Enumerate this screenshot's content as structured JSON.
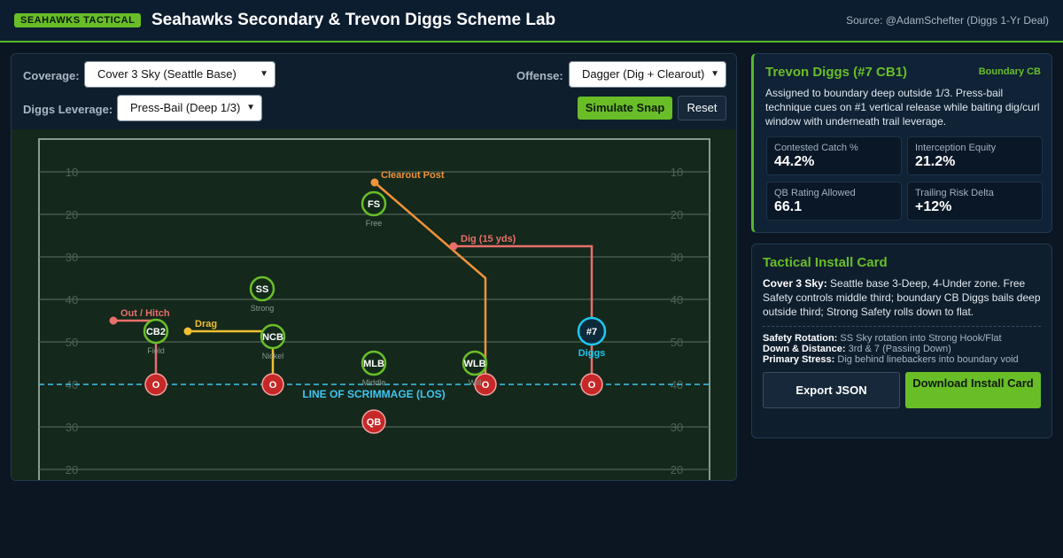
{
  "header": {
    "badge": "SEAHAWKS TACTICAL",
    "title": "Seahawks Secondary & Trevon Diggs Scheme Lab",
    "source": "Source: @AdamSchefter (Diggs 1-Yr Deal)"
  },
  "controls": {
    "coverage_label": "Coverage:",
    "coverage_value": "Cover 3 Sky (Seattle Base)",
    "offense_label": "Offense:",
    "offense_value": "Dagger (Dig + Clearout)",
    "leverage_label": "Diggs Leverage:",
    "leverage_value": "Press-Bail (Deep 1/3)",
    "simulate_label": "Simulate Snap",
    "reset_label": "Reset"
  },
  "field": {
    "yard_labels_left": [
      "10",
      "20",
      "30",
      "40",
      "50",
      "40",
      "30",
      "20"
    ],
    "yard_labels_right": [
      "10",
      "20",
      "30",
      "40",
      "50",
      "40",
      "30",
      "20"
    ],
    "los_label": "LINE OF SCRIMMAGE (LOS)",
    "defenders": [
      {
        "id": "fs",
        "label": "FS",
        "role": "Free"
      },
      {
        "id": "ss",
        "label": "SS",
        "role": "Strong"
      },
      {
        "id": "cb2",
        "label": "CB2",
        "role": "Field"
      },
      {
        "id": "ncb",
        "label": "NCB",
        "role": "Nickel"
      },
      {
        "id": "mlb",
        "label": "MLB",
        "role": "Middle"
      },
      {
        "id": "wlb",
        "label": "WLB",
        "role": "Will"
      },
      {
        "id": "diggs",
        "label": "#7",
        "role": "Diggs"
      }
    ],
    "offense": [
      {
        "id": "o1",
        "label": "O"
      },
      {
        "id": "o2",
        "label": "O"
      },
      {
        "id": "o3",
        "label": "O"
      },
      {
        "id": "o4",
        "label": "O"
      },
      {
        "id": "qb",
        "label": "QB"
      }
    ],
    "routes": [
      {
        "id": "clearout",
        "label": "Clearout Post",
        "color": "#f0923a"
      },
      {
        "id": "dig",
        "label": "Dig (15 yds)",
        "color": "#e86f6a"
      },
      {
        "id": "out",
        "label": "Out / Hitch",
        "color": "#e86f6a"
      },
      {
        "id": "drag",
        "label": "Drag",
        "color": "#f0c030"
      }
    ]
  },
  "player_card": {
    "title": "Trevon Diggs (#7 CB1)",
    "tag": "Boundary CB",
    "description": "Assigned to boundary deep outside 1/3. Press-bail technique cues on #1 vertical release while baiting dig/curl window with underneath trail leverage.",
    "stats": [
      {
        "label": "Contested Catch %",
        "value": "44.2%"
      },
      {
        "label": "Interception Equity",
        "value": "21.2%"
      },
      {
        "label": "QB Rating Allowed",
        "value": "66.1"
      },
      {
        "label": "Trailing Risk Delta",
        "value": "+12%"
      }
    ]
  },
  "install_card": {
    "title": "Tactical Install Card",
    "coverage_name": "Cover 3 Sky:",
    "coverage_desc": "Seattle base 3-Deep, 4-Under zone. Free Safety controls middle third; boundary CB Diggs bails deep outside third; Strong Safety rolls down to flat.",
    "safety_label": "Safety Rotation:",
    "safety_value": "SS Sky rotation into Strong Hook/Flat",
    "down_label": "Down & Distance:",
    "down_value": "3rd & 7 (Passing Down)",
    "stress_label": "Primary Stress:",
    "stress_value": "Dig behind linebackers into boundary void",
    "export_label": "Export JSON",
    "download_label": "Download Install Card"
  },
  "colors": {
    "accent_green": "#69be28",
    "defender_stroke": "#69be28",
    "offense_fill": "#c62828",
    "diggs_highlight": "#1ec8f0",
    "los_line": "#3ec5f0"
  }
}
